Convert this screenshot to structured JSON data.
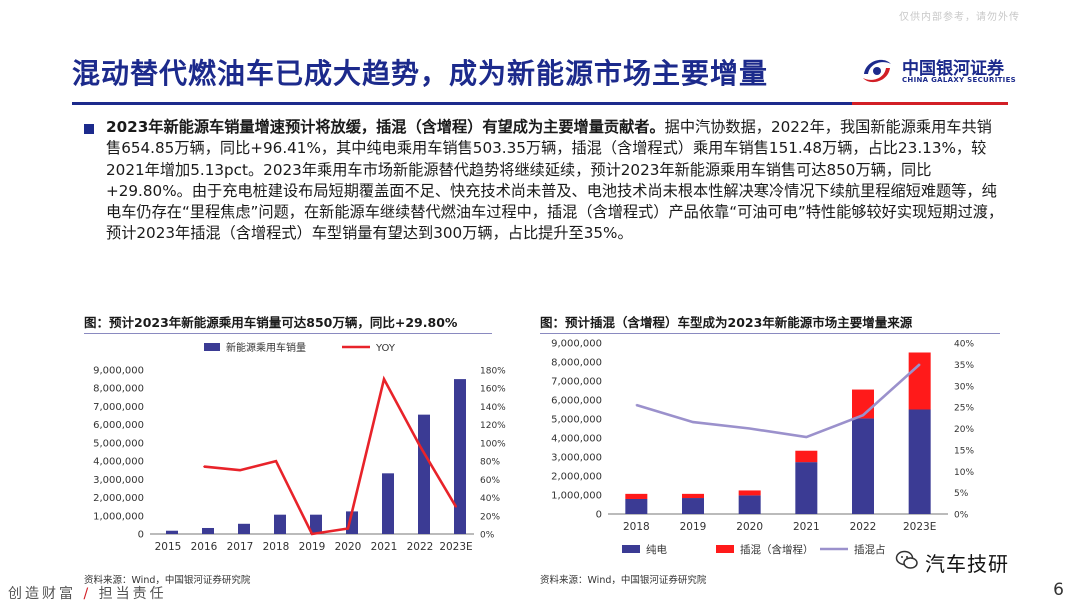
{
  "watermark": "仅供内部参考，请勿外传",
  "title": "混动替代燃油车已成大趋势，成为新能源市场主要增量",
  "logo": {
    "cn": "中国银河证券",
    "en": "CHINA GALAXY SECURITIES"
  },
  "bullet": {
    "bold": "2023年新能源车销量增速预计将放缓，插混（含增程）有望成为主要增量贡献者。",
    "body": "据中汽协数据，2022年，我国新能源乘用车共销售654.85万辆，同比+96.41%，其中纯电乘用车销售503.35万辆，插混（含增程式）乘用车销售151.48万辆，占比23.13%，较2021年增加5.13pct。2023年乘用车市场新能源替代趋势将继续延续，预计2023年新能源乘用车销售可达850万辆，同比+29.80%。由于充电桩建设布局短期覆盖面不足、快充技术尚未普及、电池技术尚未根本性解决寒冷情况下续航里程缩短难题等，纯电车仍存在“里程焦虑”问题，在新能源车继续替代燃油车过程中，插混（含增程式）产品依靠“可油可电”特性能够较好实现短期过渡，预计2023年插混（含增程式）车型销量有望达到300万辆，占比提升至35%。"
  },
  "figures": {
    "left": {
      "title": "图：预计2023年新能源乘用车销量可达850万辆，同比+29.80%",
      "source": "资料来源：Wind，中国银河证券研究院"
    },
    "right": {
      "title": "图：预计插混（含增程）车型成为2023年新能源市场主要增量来源",
      "source": "资料来源：Wind，中国银河证券研究院"
    }
  },
  "chart_data": [
    {
      "type": "bar",
      "categories": [
        "2015",
        "2016",
        "2017",
        "2018",
        "2019",
        "2020",
        "2021",
        "2022",
        "2023E"
      ],
      "series": [
        {
          "name": "新能源乘用车销量",
          "kind": "bar",
          "axis": "left",
          "color": "#3b3b94",
          "values": [
            180000,
            330000,
            560000,
            1060000,
            1060000,
            1240000,
            3330000,
            6550000,
            8500000
          ]
        },
        {
          "name": "YOY",
          "kind": "line",
          "axis": "right",
          "color": "#e8232a",
          "values": [
            null,
            74,
            70,
            80,
            0,
            6,
            170,
            96.4,
            29.8
          ]
        }
      ],
      "ylim": [
        0,
        9000000
      ],
      "y2lim": [
        0,
        180
      ],
      "yticks": [
        "0",
        "1,000,000",
        "2,000,000",
        "3,000,000",
        "4,000,000",
        "5,000,000",
        "6,000,000",
        "7,000,000",
        "8,000,000",
        "9,000,000"
      ],
      "y2ticks": [
        "0%",
        "20%",
        "40%",
        "60%",
        "80%",
        "100%",
        "120%",
        "140%",
        "160%",
        "180%"
      ],
      "legend_position": "top"
    },
    {
      "type": "bar",
      "stacked": true,
      "categories": [
        "2018",
        "2019",
        "2020",
        "2021",
        "2022",
        "2023E"
      ],
      "series": [
        {
          "name": "纯电",
          "kind": "bar",
          "axis": "left",
          "color": "#3b3b94",
          "values": [
            790000,
            840000,
            980000,
            2730000,
            5030000,
            5500000
          ]
        },
        {
          "name": "插混（含增程）",
          "kind": "bar",
          "axis": "left",
          "color": "#ff1a1a",
          "values": [
            270000,
            220000,
            260000,
            600000,
            1520000,
            3000000
          ]
        },
        {
          "name": "插混占比",
          "kind": "line",
          "axis": "right",
          "color": "#9b91cc",
          "values": [
            25.5,
            21.5,
            20,
            18,
            23.1,
            35
          ]
        }
      ],
      "ylim": [
        0,
        9000000
      ],
      "y2lim": [
        0,
        40
      ],
      "yticks": [
        "0",
        "1,000,000",
        "2,000,000",
        "3,000,000",
        "4,000,000",
        "5,000,000",
        "6,000,000",
        "7,000,000",
        "8,000,000",
        "9,000,000"
      ],
      "y2ticks": [
        "0%",
        "5%",
        "10%",
        "15%",
        "20%",
        "25%",
        "30%",
        "35%",
        "40%"
      ],
      "legend_position": "bottom"
    }
  ],
  "legend_labels": {
    "left_bar": "新能源乘用车销量",
    "left_line": "YOY",
    "right_bar1": "纯电",
    "right_bar2": "插混（含增程）",
    "right_line": "插混占"
  },
  "footer": {
    "left_a": "创造财富",
    "slash": "/",
    "left_b": "担当责任",
    "page": "6"
  },
  "wechat": "汽车技研"
}
